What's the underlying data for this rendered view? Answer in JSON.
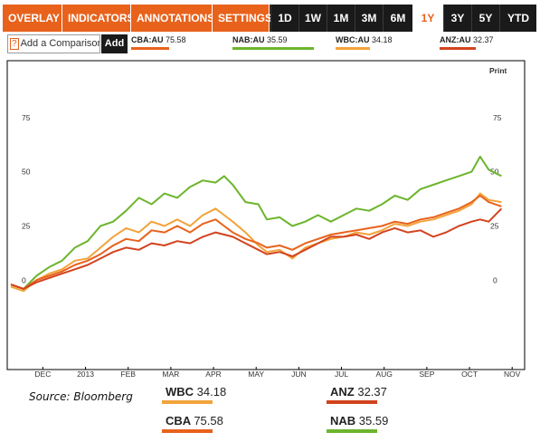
{
  "toolbar": {
    "menus": [
      {
        "label": "OVERLAY",
        "caret": "▼"
      },
      {
        "label": "INDICATORS",
        "caret": "▼"
      },
      {
        "label": "ANNOTATIONS",
        "caret": "▼"
      },
      {
        "label": "SETTINGS",
        "caret": "▼"
      }
    ],
    "ranges": [
      "1D",
      "1W",
      "1M",
      "3M",
      "6M",
      "1Y",
      "3Y",
      "5Y",
      "YTD"
    ],
    "active_range": "1Y"
  },
  "compare": {
    "help_icon": "?",
    "placeholder": "Add a Comparison",
    "add_label": "Add"
  },
  "tickers": [
    {
      "code": "CBA:AU",
      "value": "75.58",
      "color": "#e8621c"
    },
    {
      "code": "NAB:AU",
      "value": "35.59",
      "color": "#6cb52d"
    },
    {
      "code": "WBC:AU",
      "value": "34.18",
      "color": "#f2a33a"
    },
    {
      "code": "ANZ:AU",
      "value": "32.37",
      "color": "#d2431e"
    }
  ],
  "print_label": "Print",
  "source": "Source: Bloomberg",
  "legend": [
    {
      "name": "WBC",
      "value": "34.18",
      "color": "#f2a33a"
    },
    {
      "name": "ANZ",
      "value": "32.37",
      "color": "#d2431e"
    },
    {
      "name": "CBA",
      "value": "75.58",
      "color": "#e8621c"
    },
    {
      "name": "NAB",
      "value": "35.59",
      "color": "#6cb52d"
    }
  ],
  "chart_data": {
    "type": "line",
    "x_labels": [
      "DEC",
      "2013",
      "FEB",
      "MAR",
      "APR",
      "MAY",
      "JUN",
      "JUL",
      "AUG",
      "SEP",
      "OCT",
      "NOV"
    ],
    "y_ticks": [
      0,
      25,
      50,
      75
    ],
    "ylim": [
      -40,
      100
    ],
    "x_range": [
      0,
      12
    ],
    "grid": false,
    "series": [
      {
        "name": "NAB",
        "color": "#6cb52d",
        "x": [
          0,
          0.3,
          0.6,
          0.9,
          1.2,
          1.5,
          1.8,
          2.1,
          2.4,
          2.7,
          3.0,
          3.3,
          3.6,
          3.9,
          4.2,
          4.5,
          4.8,
          5.0,
          5.2,
          5.5,
          5.8,
          6.0,
          6.3,
          6.6,
          6.9,
          7.2,
          7.5,
          7.8,
          8.1,
          8.4,
          8.7,
          9.0,
          9.3,
          9.6,
          9.9,
          10.2,
          10.5,
          10.8,
          11.0,
          11.2,
          11.5
        ],
        "y": [
          -2,
          -4,
          2,
          6,
          9,
          15,
          18,
          25,
          27,
          32,
          38,
          35,
          40,
          38,
          43,
          46,
          45,
          48,
          44,
          36,
          35,
          28,
          29,
          25,
          27,
          30,
          27,
          30,
          33,
          32,
          35,
          39,
          37,
          42,
          44,
          46,
          48,
          50,
          57,
          51,
          48
        ]
      },
      {
        "name": "WBC",
        "color": "#f2a33a",
        "x": [
          0,
          0.3,
          0.6,
          0.9,
          1.2,
          1.5,
          1.8,
          2.1,
          2.4,
          2.7,
          3.0,
          3.3,
          3.6,
          3.9,
          4.2,
          4.5,
          4.8,
          5.0,
          5.2,
          5.5,
          5.8,
          6.0,
          6.3,
          6.6,
          6.9,
          7.2,
          7.5,
          7.8,
          8.1,
          8.4,
          8.7,
          9.0,
          9.3,
          9.6,
          9.9,
          10.2,
          10.5,
          10.8,
          11.0,
          11.2,
          11.5
        ],
        "y": [
          -3,
          -5,
          0,
          3,
          5,
          9,
          10,
          15,
          20,
          24,
          22,
          27,
          25,
          28,
          25,
          30,
          33,
          30,
          27,
          22,
          16,
          13,
          14,
          10,
          15,
          17,
          19,
          20,
          22,
          21,
          23,
          26,
          25,
          27,
          28,
          30,
          32,
          35,
          40,
          37,
          36
        ]
      },
      {
        "name": "CBA",
        "color": "#e8621c",
        "x": [
          0,
          0.3,
          0.6,
          0.9,
          1.2,
          1.5,
          1.8,
          2.1,
          2.4,
          2.7,
          3.0,
          3.3,
          3.6,
          3.9,
          4.2,
          4.5,
          4.8,
          5.0,
          5.2,
          5.5,
          5.8,
          6.0,
          6.3,
          6.6,
          6.9,
          7.2,
          7.5,
          7.8,
          8.1,
          8.4,
          8.7,
          9.0,
          9.3,
          9.6,
          9.9,
          10.2,
          10.5,
          10.8,
          11.0,
          11.2,
          11.5
        ],
        "y": [
          -2,
          -4,
          0,
          2,
          4,
          7,
          9,
          12,
          16,
          19,
          18,
          23,
          22,
          25,
          22,
          26,
          28,
          25,
          22,
          19,
          17,
          15,
          16,
          14,
          17,
          19,
          21,
          22,
          23,
          24,
          25,
          27,
          26,
          28,
          29,
          31,
          33,
          36,
          39,
          36,
          34
        ]
      },
      {
        "name": "ANZ",
        "color": "#d2431e",
        "x": [
          0,
          0.3,
          0.6,
          0.9,
          1.2,
          1.5,
          1.8,
          2.1,
          2.4,
          2.7,
          3.0,
          3.3,
          3.6,
          3.9,
          4.2,
          4.5,
          4.8,
          5.0,
          5.2,
          5.5,
          5.8,
          6.0,
          6.3,
          6.6,
          6.9,
          7.2,
          7.5,
          7.8,
          8.1,
          8.4,
          8.7,
          9.0,
          9.3,
          9.6,
          9.9,
          10.2,
          10.5,
          10.8,
          11.0,
          11.2,
          11.5
        ],
        "y": [
          -2,
          -4,
          -1,
          1,
          3,
          5,
          7,
          10,
          13,
          15,
          14,
          17,
          16,
          18,
          17,
          20,
          22,
          21,
          20,
          17,
          14,
          12,
          13,
          11,
          14,
          17,
          20,
          20,
          21,
          19,
          22,
          24,
          22,
          23,
          20,
          22,
          25,
          27,
          28,
          27,
          33
        ]
      }
    ]
  }
}
